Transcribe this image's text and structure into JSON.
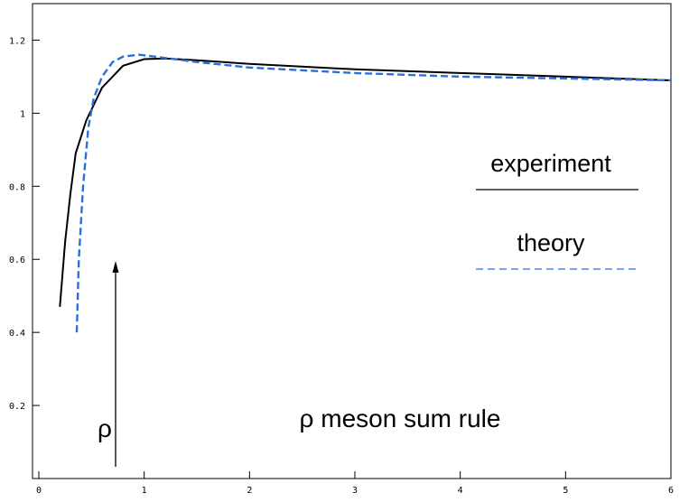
{
  "chart_data": {
    "type": "line",
    "annotation": "ρ meson sum rule",
    "arrow_label": "ρ",
    "xlim": [
      -0.06,
      6
    ],
    "ylim": [
      0,
      1.3
    ],
    "xticks": [
      0,
      1,
      2,
      3,
      4,
      5,
      6
    ],
    "yticks": [
      0.2,
      0.4,
      0.6,
      0.8,
      {
        "value": 1,
        "label": "1"
      },
      1.2
    ],
    "series": [
      {
        "name": "experiment",
        "color": "#000000",
        "dash": "solid",
        "x": [
          0.2,
          0.25,
          0.3,
          0.35,
          0.45,
          0.6,
          0.8,
          1.0,
          1.2,
          1.5,
          2,
          3,
          4,
          5,
          6
        ],
        "values": [
          0.47,
          0.65,
          0.78,
          0.89,
          0.98,
          1.07,
          1.13,
          1.148,
          1.15,
          1.145,
          1.135,
          1.12,
          1.11,
          1.1,
          1.09
        ]
      },
      {
        "name": "theory",
        "color": "#2a6fdb",
        "dash": "dashed",
        "x": [
          0.36,
          0.38,
          0.42,
          0.47,
          0.52,
          0.6,
          0.7,
          0.8,
          0.95,
          1.1,
          1.5,
          2,
          3,
          4,
          5,
          6
        ],
        "values": [
          0.4,
          0.6,
          0.8,
          0.96,
          1.04,
          1.1,
          1.14,
          1.155,
          1.16,
          1.155,
          1.14,
          1.125,
          1.11,
          1.1,
          1.095,
          1.09
        ]
      }
    ]
  }
}
